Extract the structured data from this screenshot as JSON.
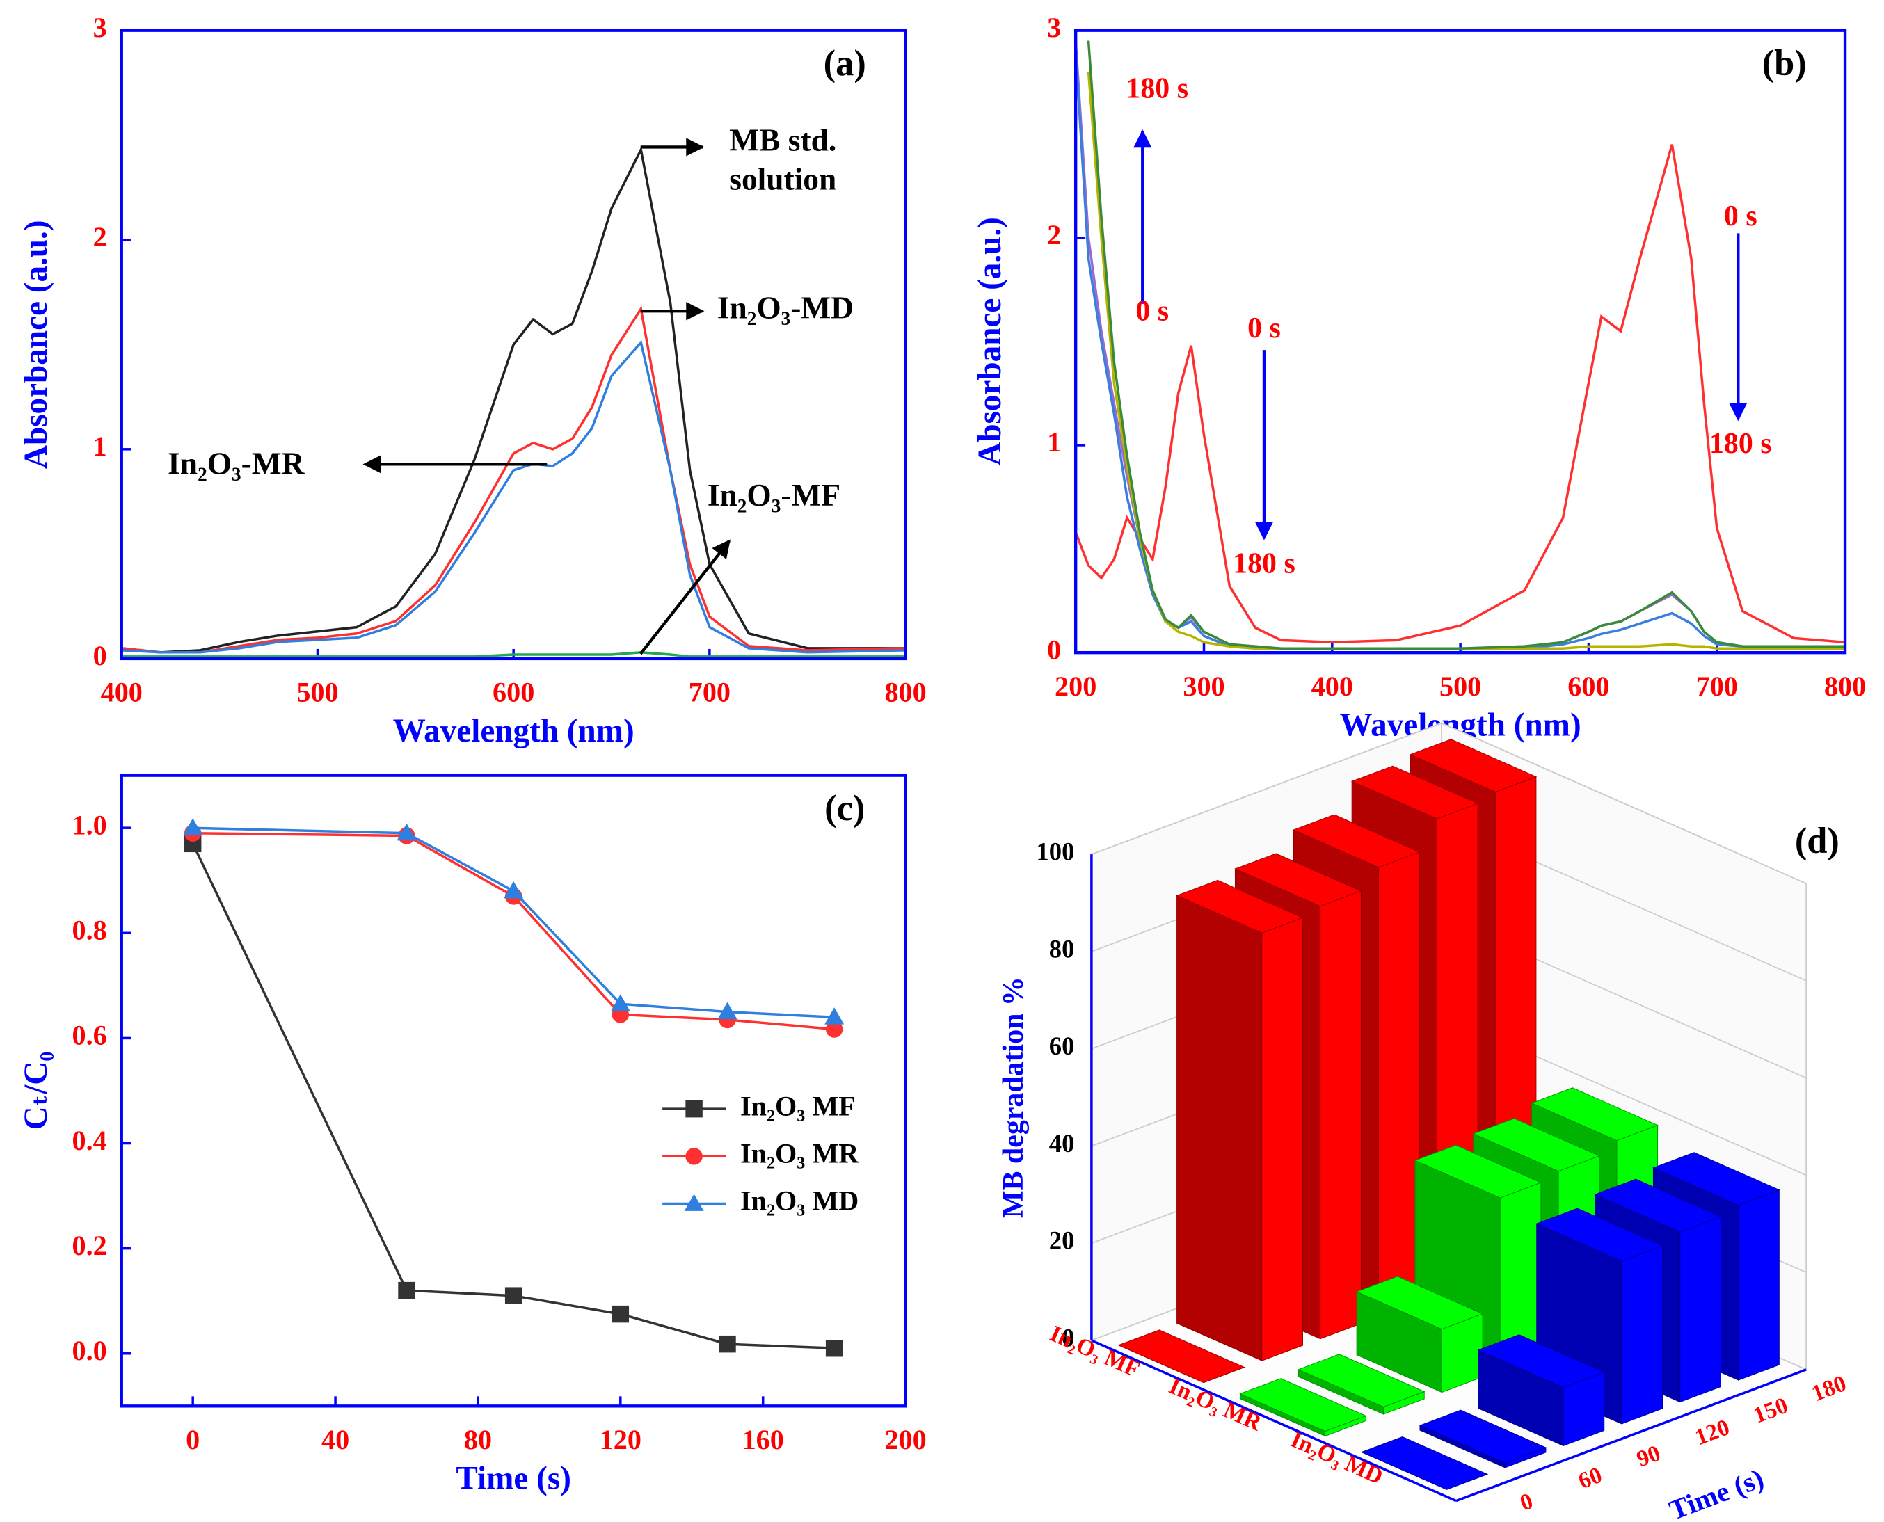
{
  "chart_data": [
    {
      "type": "line",
      "title": "(a)",
      "xlabel": "Wavelength (nm)",
      "ylabel": "Absorbance (a.u.)",
      "frame_color": "#0000ff",
      "tick_label_color": "#ff0000",
      "axis_label_color": "#0000ff",
      "x": [
        400,
        420,
        440,
        460,
        480,
        500,
        520,
        540,
        560,
        580,
        600,
        610,
        620,
        630,
        640,
        650,
        665,
        680,
        690,
        700,
        720,
        750,
        800
      ],
      "series": [
        {
          "name": "MB std. solution",
          "color": "#222222",
          "values": [
            0.05,
            0.03,
            0.04,
            0.08,
            0.11,
            0.13,
            0.15,
            0.25,
            0.5,
            0.95,
            1.5,
            1.62,
            1.55,
            1.6,
            1.85,
            2.15,
            2.43,
            1.7,
            0.9,
            0.45,
            0.12,
            0.05,
            0.05
          ]
        },
        {
          "name": "In₂O₃-MD",
          "color": "#ff3030",
          "values": [
            0.05,
            0.03,
            0.03,
            0.06,
            0.09,
            0.1,
            0.12,
            0.18,
            0.35,
            0.65,
            0.98,
            1.03,
            1.0,
            1.05,
            1.2,
            1.45,
            1.67,
            0.9,
            0.45,
            0.2,
            0.06,
            0.04,
            0.05
          ]
        },
        {
          "name": "In₂O₃-MR",
          "color": "#2f7fe0",
          "values": [
            0.04,
            0.03,
            0.03,
            0.05,
            0.08,
            0.09,
            0.1,
            0.16,
            0.32,
            0.6,
            0.9,
            0.93,
            0.92,
            0.98,
            1.1,
            1.35,
            1.51,
            0.9,
            0.4,
            0.15,
            0.05,
            0.03,
            0.04
          ]
        },
        {
          "name": "In₂O₃-MF",
          "color": "#22aa44",
          "values": [
            0.01,
            0.01,
            0.01,
            0.01,
            0.01,
            0.01,
            0.01,
            0.01,
            0.01,
            0.01,
            0.02,
            0.02,
            0.02,
            0.02,
            0.02,
            0.02,
            0.03,
            0.02,
            0.01,
            0.01,
            0.01,
            0.01,
            0.01
          ]
        }
      ],
      "xlim": [
        400,
        800
      ],
      "xticks": [
        400,
        500,
        600,
        700,
        800
      ],
      "ylim": [
        0,
        3
      ],
      "yticks": [
        0,
        1,
        2,
        3
      ]
    },
    {
      "type": "line",
      "title": "(b)",
      "xlabel": "Wavelength (nm)",
      "ylabel": "Absorbance (a.u.)",
      "frame_color": "#0000ff",
      "tick_label_color": "#ff0000",
      "axis_label_color": "#0000ff",
      "annotation_color": "#ff0000",
      "arrow_color": "#0000ff",
      "annotations": [
        "180 s",
        "0 s",
        "0 s",
        "180 s",
        "0 s",
        "180 s"
      ],
      "x": [
        200,
        210,
        220,
        230,
        240,
        250,
        260,
        270,
        280,
        290,
        300,
        320,
        340,
        360,
        400,
        450,
        500,
        550,
        580,
        600,
        610,
        625,
        640,
        665,
        680,
        690,
        700,
        720,
        760,
        800
      ],
      "series": [
        {
          "color": "#ff3030",
          "values": [
            0.58,
            0.42,
            0.36,
            0.45,
            0.65,
            0.55,
            0.45,
            0.8,
            1.25,
            1.48,
            1.05,
            0.32,
            0.12,
            0.06,
            0.05,
            0.06,
            0.13,
            0.3,
            0.65,
            1.3,
            1.62,
            1.55,
            1.9,
            2.45,
            1.9,
            1.2,
            0.6,
            0.2,
            0.07,
            0.05
          ]
        },
        {
          "color": "#9a6ad0",
          "values": [
            2.95,
            2.0,
            1.55,
            1.2,
            0.85,
            0.55,
            0.3,
            0.15,
            0.12,
            0.17,
            0.1,
            0.04,
            0.03,
            0.02,
            0.02,
            0.02,
            0.02,
            0.03,
            0.05,
            0.1,
            0.13,
            0.15,
            0.2,
            0.28,
            0.2,
            0.1,
            0.05,
            0.03,
            0.03,
            0.03
          ]
        },
        {
          "color": "#3a7ee0",
          "values": [
            2.9,
            1.9,
            1.5,
            1.15,
            0.75,
            0.5,
            0.28,
            0.15,
            0.12,
            0.15,
            0.08,
            0.03,
            0.02,
            0.02,
            0.02,
            0.02,
            0.02,
            0.02,
            0.04,
            0.07,
            0.09,
            0.11,
            0.14,
            0.19,
            0.14,
            0.08,
            0.04,
            0.03,
            0.03,
            0.03
          ]
        },
        {
          "color": "#b5b500",
          "values": [
            null,
            2.8,
            2.0,
            1.3,
            0.9,
            0.55,
            0.3,
            0.15,
            0.1,
            0.08,
            0.05,
            0.03,
            0.02,
            0.02,
            0.02,
            0.02,
            0.02,
            0.02,
            0.02,
            0.03,
            0.03,
            0.03,
            0.03,
            0.04,
            0.03,
            0.03,
            0.02,
            0.02,
            0.02,
            0.02
          ]
        },
        {
          "color": "#3a8a3a",
          "values": [
            null,
            2.95,
            2.1,
            1.4,
            0.95,
            0.58,
            0.3,
            0.16,
            0.12,
            0.18,
            0.1,
            0.04,
            0.03,
            0.02,
            0.02,
            0.02,
            0.02,
            0.03,
            0.05,
            0.1,
            0.13,
            0.15,
            0.2,
            0.29,
            0.2,
            0.1,
            0.05,
            0.03,
            0.03,
            0.03
          ]
        }
      ],
      "xlim": [
        200,
        800
      ],
      "xticks": [
        200,
        300,
        400,
        500,
        600,
        700,
        800
      ],
      "ylim": [
        0,
        3
      ],
      "yticks": [
        0,
        1,
        2,
        3
      ]
    },
    {
      "type": "line",
      "title": "(c)",
      "xlabel": "Time (s)",
      "ylabel": "Cₜ/C₀",
      "frame_color": "#0000ff",
      "tick_label_color": "#ff0000",
      "axis_label_color": "#0000ff",
      "legend": "center right",
      "x": [
        0,
        60,
        90,
        120,
        150,
        180
      ],
      "series": [
        {
          "name": "In₂O₃ MF",
          "color": "#333333",
          "marker": "square",
          "values": [
            0.97,
            0.12,
            0.11,
            0.075,
            0.018,
            0.01
          ]
        },
        {
          "name": "In₂O₃ MR",
          "color": "#ff3030",
          "marker": "circle",
          "values": [
            0.99,
            0.985,
            0.87,
            0.645,
            0.635,
            0.617
          ]
        },
        {
          "name": "In₂O₃ MD",
          "color": "#2f7fe0",
          "marker": "triangle",
          "values": [
            1.0,
            0.99,
            0.88,
            0.665,
            0.65,
            0.64
          ]
        }
      ],
      "xlim": [
        -20,
        200
      ],
      "xticks": [
        0,
        40,
        80,
        120,
        160,
        200
      ],
      "ylim": [
        -0.1,
        1.1
      ],
      "yticks": [
        {
          "value": 0,
          "label": "0.0"
        },
        0.2,
        0.4,
        0.6,
        0.8,
        {
          "value": 1,
          "label": "1.0"
        }
      ]
    },
    {
      "type": "bar3d",
      "title": "(d)",
      "xlabel": "Time (s)",
      "ylabel": "MB degradation %",
      "axis_color": "#0000ff",
      "tick_label_color": "#ff0000",
      "axis_label_color": "#0000ff",
      "x": [
        0,
        60,
        90,
        120,
        150,
        180
      ],
      "series": [
        {
          "name": "In₂O₃ MF",
          "color": "#ff0000",
          "values": [
            0,
            88,
            89,
            92.5,
            98,
            99
          ]
        },
        {
          "name": "In₂O₃ MR",
          "color": "#00ff00",
          "values": [
            1,
            1.5,
            13,
            35.5,
            36.5,
            38.3
          ]
        },
        {
          "name": "In₂O₃ MD",
          "color": "#0000ff",
          "values": [
            0,
            1,
            12,
            33.5,
            35,
            36
          ]
        }
      ],
      "ylim": [
        0,
        100
      ],
      "yticks": [
        0,
        20,
        40,
        60,
        80,
        100
      ]
    }
  ]
}
